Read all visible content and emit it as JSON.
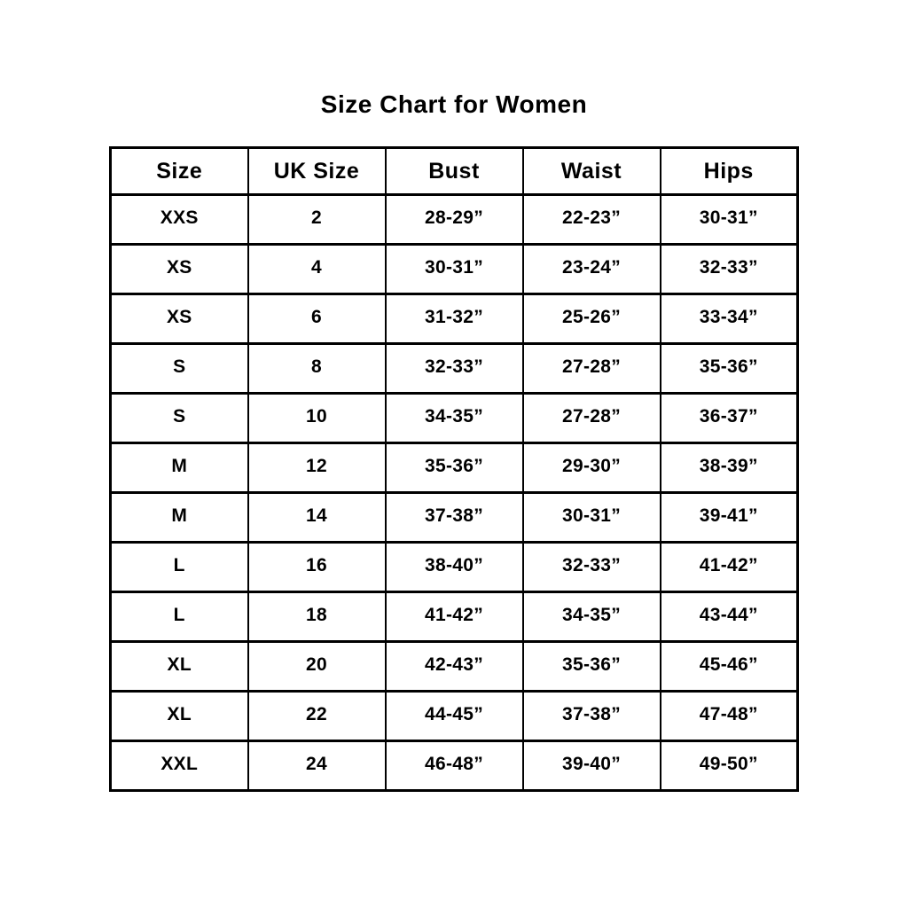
{
  "page": {
    "title": "Size Chart for Women"
  },
  "table": {
    "headers": [
      "Size",
      "UK Size",
      "Bust",
      "Waist",
      "Hips"
    ],
    "rows": [
      [
        "XXS",
        "2",
        "28-29”",
        "22-23”",
        "30-31”"
      ],
      [
        "XS",
        "4",
        "30-31”",
        "23-24”",
        "32-33”"
      ],
      [
        "XS",
        "6",
        "31-32”",
        "25-26”",
        "33-34”"
      ],
      [
        "S",
        "8",
        "32-33”",
        "27-28”",
        "35-36”"
      ],
      [
        "S",
        "10",
        "34-35”",
        "27-28”",
        "36-37”"
      ],
      [
        "M",
        "12",
        "35-36”",
        "29-30”",
        "38-39”"
      ],
      [
        "M",
        "14",
        "37-38”",
        "30-31”",
        "39-41”"
      ],
      [
        "L",
        "16",
        "38-40”",
        "32-33”",
        "41-42”"
      ],
      [
        "L",
        "18",
        "41-42”",
        "34-35”",
        "43-44”"
      ],
      [
        "XL",
        "20",
        "42-43”",
        "35-36”",
        "45-46”"
      ],
      [
        "XL",
        "22",
        "44-45”",
        "37-38”",
        "47-48”"
      ],
      [
        "XXL",
        "24",
        "46-48”",
        "39-40”",
        "49-50”"
      ]
    ]
  },
  "chart_data": {
    "type": "table",
    "title": "Size Chart for Women",
    "columns": [
      "Size",
      "UK Size",
      "Bust",
      "Waist",
      "Hips"
    ],
    "rows": [
      [
        "XXS",
        "2",
        "28-29”",
        "22-23”",
        "30-31”"
      ],
      [
        "XS",
        "4",
        "30-31”",
        "23-24”",
        "32-33”"
      ],
      [
        "XS",
        "6",
        "31-32”",
        "25-26”",
        "33-34”"
      ],
      [
        "S",
        "8",
        "32-33”",
        "27-28”",
        "35-36”"
      ],
      [
        "S",
        "10",
        "34-35”",
        "27-28”",
        "36-37”"
      ],
      [
        "M",
        "12",
        "35-36”",
        "29-30”",
        "38-39”"
      ],
      [
        "M",
        "14",
        "37-38”",
        "30-31”",
        "39-41”"
      ],
      [
        "L",
        "16",
        "38-40”",
        "32-33”",
        "41-42”"
      ],
      [
        "L",
        "18",
        "41-42”",
        "34-35”",
        "43-44”"
      ],
      [
        "XL",
        "20",
        "42-43”",
        "35-36”",
        "45-46”"
      ],
      [
        "XL",
        "22",
        "44-45”",
        "37-38”",
        "47-48”"
      ],
      [
        "XXL",
        "24",
        "46-48”",
        "39-40”",
        "49-50”"
      ]
    ],
    "layout": {
      "background": "#ffffff",
      "text_color": "#000000",
      "border_color": "#000000",
      "grid": true
    }
  }
}
